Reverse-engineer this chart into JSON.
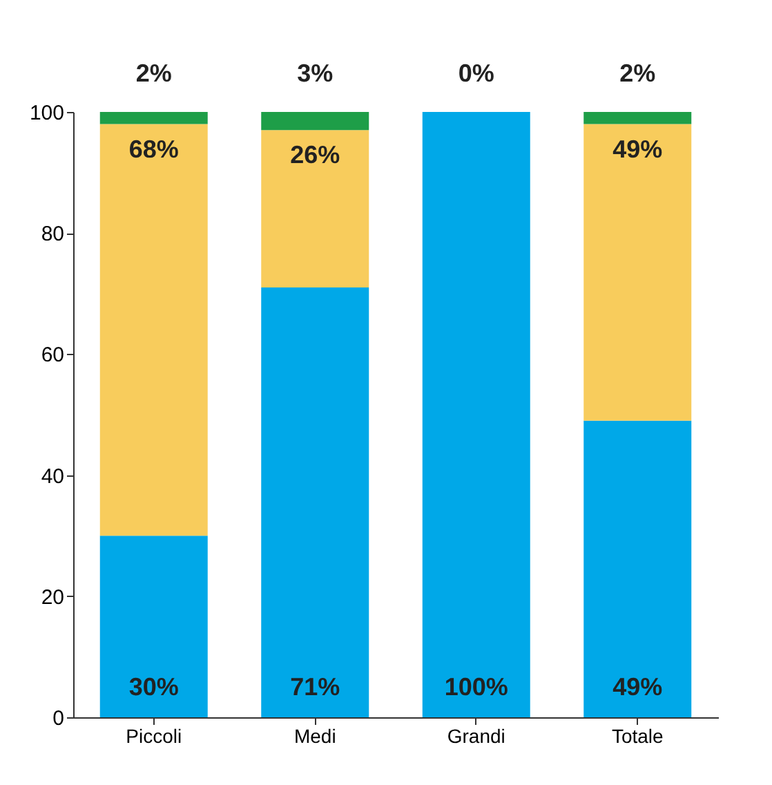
{
  "chart_data": {
    "type": "bar",
    "stacked": true,
    "categories": [
      "Piccoli",
      "Medi",
      "Grandi",
      "Totale"
    ],
    "series": [
      {
        "color": "#00a8e8",
        "values": [
          30,
          71,
          100,
          49
        ],
        "value_labels": [
          "30%",
          "71%",
          "100%",
          "49%"
        ]
      },
      {
        "color": "#f8cc5c",
        "values": [
          68,
          26,
          0,
          49
        ],
        "value_labels": [
          "68%",
          "26%",
          null,
          "49%"
        ]
      },
      {
        "color": "#1e9e48",
        "values": [
          2,
          3,
          0,
          2
        ],
        "value_labels": [
          "2%",
          "3%",
          "0%",
          "2%"
        ]
      }
    ],
    "ylim": [
      0,
      100
    ],
    "yticks": [
      0,
      20,
      40,
      60,
      80,
      100
    ],
    "grid": false
  }
}
